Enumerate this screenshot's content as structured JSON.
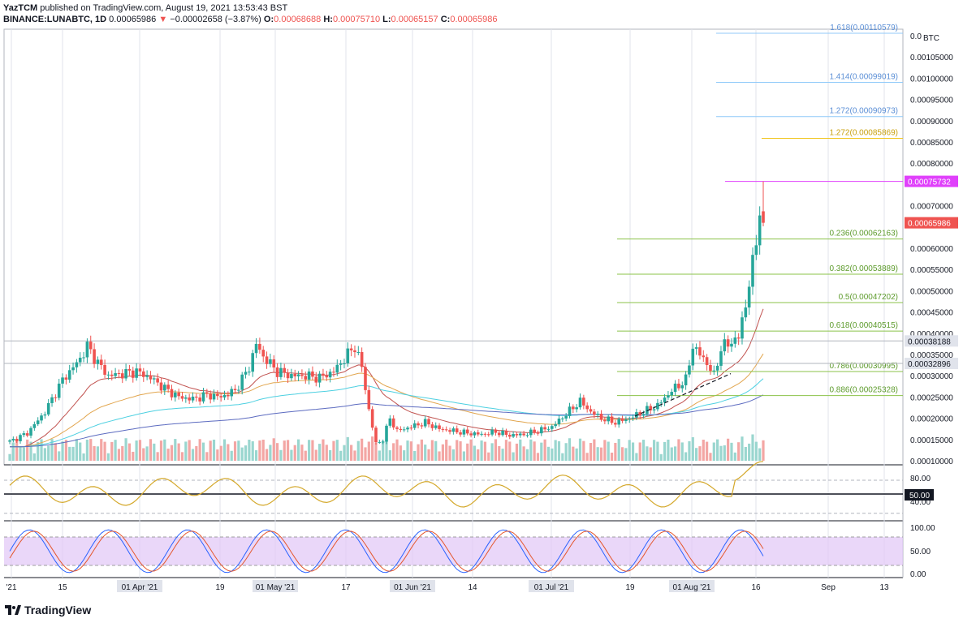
{
  "header": {
    "line1_user": "YazTCM",
    "line1_rest": "published on TradingView.com, August 19, 2021 13:53:43 BST",
    "symbol": "BINANCE:LUNABTC, 1D",
    "price": "0.00065986",
    "arrow": "▼",
    "change": "−0.00002658 (−3.87%)",
    "open_label": "O:",
    "open": "0.00068688",
    "high_label": "H:",
    "high": "0.00075710",
    "low_label": "L:",
    "low": "0.00065157",
    "close_label": "C:",
    "close": "0.00065986"
  },
  "footer": {
    "logo_text": "TradingView"
  },
  "colors": {
    "up": "#26a69a",
    "down": "#ef5350",
    "fib_green": "#8bc34a",
    "fib_blue": "#90caf9",
    "fib_gold": "#f0c419",
    "magenta": "#e040fb",
    "rsi": "#d4a82a",
    "stoch_k": "#2962ff",
    "stoch_d": "#e4572e",
    "stoch_band": "#e1c6f7"
  },
  "chart_data": {
    "type": "candlestick",
    "symbol": "BINANCE:LUNABTC",
    "interval": "1D",
    "y_unit": "BTC",
    "y_ticks": [
      "0.0",
      "0.00105000",
      "0.00100000",
      "0.00095000",
      "0.00090000",
      "0.00085000",
      "0.00080000",
      "0.00070000",
      "0.00060000",
      "0.00055000",
      "0.00050000",
      "0.00045000",
      "0.00040000",
      "0.00035000",
      "0.00030000",
      "0.00025000",
      "0.00020000",
      "0.00015000",
      "0.00010000"
    ],
    "x_ticks": [
      "'21",
      "15",
      "01 Apr '21",
      "19",
      "01 May '21",
      "17",
      "01 Jun '21",
      "14",
      "01 Jul '21",
      "19",
      "01 Aug '21",
      "16",
      "Sep",
      "13"
    ],
    "price_badges": [
      {
        "label": "0.00075732",
        "color": "#e040fb"
      },
      {
        "label": "0.00065986",
        "color": "#ef5350"
      },
      {
        "label": "0.00038188",
        "color": "#e0e3eb"
      },
      {
        "label": "0.00032896",
        "color": "#e0e3eb"
      }
    ],
    "fib_levels": [
      {
        "label": "1.618(0.00110579)",
        "value": 0.00110579,
        "color": "#90caf9"
      },
      {
        "label": "1.414(0.00099019)",
        "value": 0.00099019,
        "color": "#90caf9"
      },
      {
        "label": "1.272(0.00090973)",
        "value": 0.00090973,
        "color": "#90caf9"
      },
      {
        "label": "1.272(0.00085869)",
        "value": 0.00085869,
        "color": "#f0c419"
      },
      {
        "label": "0.236(0.00062163)",
        "value": 0.00062163,
        "color": "#8bc34a"
      },
      {
        "label": "0.382(0.00053889)",
        "value": 0.00053889,
        "color": "#8bc34a"
      },
      {
        "label": "0.5(0.00047202)",
        "value": 0.00047202,
        "color": "#8bc34a"
      },
      {
        "label": "0.618(0.00040515)",
        "value": 0.00040515,
        "color": "#8bc34a"
      },
      {
        "label": "0.786(0.00030995)",
        "value": 0.00030995,
        "color": "#8bc34a"
      },
      {
        "label": "0.886(0.00025328)",
        "value": 0.00025328,
        "color": "#8bc34a"
      }
    ],
    "close_anchors": [
      [
        0,
        0.000145
      ],
      [
        5,
        0.000165
      ],
      [
        10,
        0.000215
      ],
      [
        15,
        0.00029
      ],
      [
        20,
        0.00034
      ],
      [
        22,
        0.00037
      ],
      [
        25,
        0.00033
      ],
      [
        28,
        0.0003
      ],
      [
        32,
        0.000305
      ],
      [
        36,
        0.00031
      ],
      [
        40,
        0.000295
      ],
      [
        44,
        0.00027
      ],
      [
        48,
        0.00025
      ],
      [
        52,
        0.000245
      ],
      [
        56,
        0.000255
      ],
      [
        60,
        0.00025
      ],
      [
        64,
        0.000265
      ],
      [
        68,
        0.00032
      ],
      [
        70,
        0.000375
      ],
      [
        72,
        0.000345
      ],
      [
        76,
        0.00031
      ],
      [
        80,
        0.0003
      ],
      [
        84,
        0.0003
      ],
      [
        88,
        0.000295
      ],
      [
        92,
        0.00031
      ],
      [
        95,
        0.00034
      ],
      [
        98,
        0.00037
      ],
      [
        100,
        0.00032
      ],
      [
        102,
        0.00022
      ],
      [
        104,
        0.00014
      ],
      [
        106,
        0.00015
      ],
      [
        108,
        0.0002
      ],
      [
        110,
        0.00017
      ],
      [
        114,
        0.00018
      ],
      [
        118,
        0.00019
      ],
      [
        122,
        0.000175
      ],
      [
        126,
        0.00017
      ],
      [
        130,
        0.000165
      ],
      [
        134,
        0.000162
      ],
      [
        138,
        0.000168
      ],
      [
        142,
        0.00016
      ],
      [
        146,
        0.000162
      ],
      [
        150,
        0.00017
      ],
      [
        154,
        0.00018
      ],
      [
        158,
        0.00021
      ],
      [
        162,
        0.00024
      ],
      [
        165,
        0.000215
      ],
      [
        168,
        0.0002
      ],
      [
        172,
        0.00019
      ],
      [
        176,
        0.0002
      ],
      [
        180,
        0.000215
      ],
      [
        184,
        0.00023
      ],
      [
        188,
        0.000265
      ],
      [
        192,
        0.00029
      ],
      [
        194,
        0.00037
      ],
      [
        196,
        0.00035
      ],
      [
        198,
        0.00033
      ],
      [
        200,
        0.0003
      ],
      [
        202,
        0.000365
      ],
      [
        205,
        0.00038
      ],
      [
        207,
        0.00039
      ],
      [
        209,
        0.00047
      ],
      [
        211,
        0.00056
      ],
      [
        213,
        0.00069
      ],
      [
        214,
        0.00066
      ]
    ],
    "last_candle": {
      "open": 0.00068688,
      "high": 0.0007571,
      "low": 0.00065157,
      "close": 0.00065986
    },
    "moving_averages": [
      "red EMA",
      "orange EMA",
      "cyan EMA",
      "blue EMA"
    ],
    "rsi": {
      "levels": [
        "80.00",
        "50.00",
        "40.00"
      ],
      "badge": "50.00"
    },
    "stoch_rsi": {
      "levels": [
        "100.00",
        "50.00",
        "0.00"
      ]
    }
  }
}
